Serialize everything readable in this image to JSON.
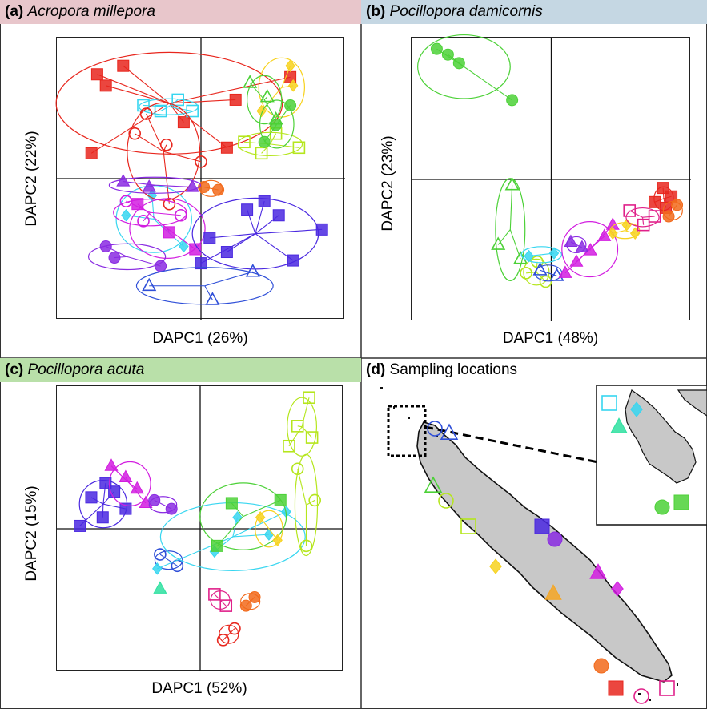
{
  "panels": {
    "a": {
      "label": "(a)",
      "species": "Acropora millepora",
      "bg": "#e8c6cb",
      "xlabel": "DAPC1 (26%)",
      "ylabel": "DAPC2 (22%)"
    },
    "b": {
      "label": "(b)",
      "species": "Pocillopora damicornis",
      "bg": "#c5d7e3",
      "xlabel": "DAPC1 (48%)",
      "ylabel": "DAPC2 (23%)"
    },
    "c": {
      "label": "(c)",
      "species": "Pocillopora acuta",
      "bg": "#b9e0a9",
      "xlabel": "DAPC1 (52%)",
      "ylabel": "DAPC2 (15%)"
    },
    "d": {
      "label": "(d)",
      "title": "Sampling locations"
    }
  },
  "colors": {
    "red": "#e8261d",
    "orange": "#f26a1b",
    "amber": "#f5a623",
    "yellow": "#f7d21d",
    "lime": "#b5e61d",
    "green": "#4cd137",
    "mint": "#2ee0a0",
    "cyan": "#37d6f0",
    "blue": "#2f4fd8",
    "indigo": "#4a28e0",
    "violet": "#8a2be2",
    "magenta": "#d21de0",
    "pink": "#e0218a",
    "land": "#c8c8c8"
  },
  "chart_data": [
    {
      "type": "scatter",
      "panel": "a",
      "xlabel": "DAPC1 (26%)",
      "ylabel": "DAPC2 (22%)",
      "xlim": [
        -5,
        5
      ],
      "ylim": [
        -5,
        5
      ],
      "series": [
        {
          "color": "red",
          "shape": "square",
          "fill": true,
          "points": [
            [
              -3.6,
              3.7
            ],
            [
              -3.3,
              3.3
            ],
            [
              -2.7,
              4.0
            ],
            [
              -3.8,
              0.9
            ],
            [
              -0.6,
              2.0
            ],
            [
              0.9,
              1.1
            ],
            [
              1.2,
              2.8
            ],
            [
              3.1,
              3.6
            ]
          ]
        },
        {
          "color": "cyan",
          "shape": "square",
          "fill": false,
          "points": [
            [
              -2.0,
              2.6
            ],
            [
              -1.4,
              2.4
            ],
            [
              -0.8,
              2.8
            ],
            [
              -0.3,
              2.4
            ]
          ]
        },
        {
          "color": "cyan",
          "shape": "diamond",
          "fill": true,
          "points": [
            [
              -2.6,
              -1.3
            ],
            [
              -0.6,
              -2.4
            ],
            [
              -1.7,
              -0.6
            ]
          ]
        },
        {
          "color": "yellow",
          "shape": "diamond",
          "fill": true,
          "points": [
            [
              3.1,
              4.0
            ],
            [
              3.2,
              3.3
            ],
            [
              2.1,
              2.4
            ]
          ]
        },
        {
          "color": "lime",
          "shape": "square",
          "fill": false,
          "points": [
            [
              1.5,
              1.3
            ],
            [
              2.6,
              1.6
            ],
            [
              2.1,
              0.9
            ],
            [
              3.4,
              1.1
            ]
          ]
        },
        {
          "color": "green",
          "shape": "circle",
          "fill": true,
          "points": [
            [
              3.1,
              2.6
            ],
            [
              2.6,
              1.9
            ],
            [
              2.2,
              1.3
            ]
          ]
        },
        {
          "color": "green",
          "shape": "triangle",
          "fill": false,
          "points": [
            [
              1.7,
              3.4
            ],
            [
              2.3,
              2.9
            ],
            [
              2.6,
              2.1
            ]
          ]
        },
        {
          "color": "red",
          "shape": "circle",
          "fill": false,
          "points": [
            [
              -1.9,
              2.3
            ],
            [
              -2.3,
              1.6
            ],
            [
              -1.2,
              1.2
            ],
            [
              0.0,
              0.6
            ],
            [
              -1.1,
              -0.9
            ]
          ]
        },
        {
          "color": "orange",
          "shape": "circle",
          "fill": true,
          "points": [
            [
              0.6,
              -0.4
            ],
            [
              0.1,
              -0.3
            ]
          ]
        },
        {
          "color": "violet",
          "shape": "triangle",
          "fill": true,
          "points": [
            [
              -2.7,
              -0.1
            ],
            [
              -1.8,
              -0.3
            ],
            [
              -0.3,
              -0.3
            ]
          ]
        },
        {
          "color": "magenta",
          "shape": "square",
          "fill": true,
          "points": [
            [
              -2.2,
              -0.9
            ],
            [
              -1.1,
              -1.9
            ],
            [
              -0.2,
              -2.5
            ]
          ]
        },
        {
          "color": "magenta",
          "shape": "circle",
          "fill": false,
          "points": [
            [
              -2.0,
              -1.5
            ],
            [
              -2.6,
              -0.8
            ],
            [
              -0.7,
              -1.3
            ]
          ]
        },
        {
          "color": "violet",
          "shape": "circle",
          "fill": true,
          "points": [
            [
              -3.0,
              -2.8
            ],
            [
              -3.3,
              -2.4
            ],
            [
              -1.4,
              -3.1
            ]
          ]
        },
        {
          "color": "indigo",
          "shape": "square",
          "fill": true,
          "points": [
            [
              0.3,
              -2.1
            ],
            [
              0.9,
              -2.6
            ],
            [
              1.6,
              -1.1
            ],
            [
              2.2,
              -0.8
            ],
            [
              2.7,
              -1.3
            ],
            [
              4.2,
              -1.8
            ],
            [
              3.2,
              -2.9
            ],
            [
              0.0,
              -3.0
            ]
          ]
        },
        {
          "color": "blue",
          "shape": "triangle",
          "fill": false,
          "points": [
            [
              -1.8,
              -3.8
            ],
            [
              1.8,
              -3.3
            ],
            [
              0.4,
              -4.3
            ]
          ]
        }
      ]
    },
    {
      "type": "scatter",
      "panel": "b",
      "xlabel": "DAPC1 (48%)",
      "ylabel": "DAPC2 (23%)",
      "xlim": [
        -5,
        5
      ],
      "ylim": [
        -5,
        5
      ],
      "series": [
        {
          "color": "green",
          "shape": "circle",
          "fill": true,
          "points": [
            [
              -4.1,
              4.6
            ],
            [
              -3.7,
              4.4
            ],
            [
              -3.3,
              4.1
            ],
            [
              -1.4,
              2.8
            ]
          ]
        },
        {
          "color": "green",
          "shape": "triangle",
          "fill": false,
          "points": [
            [
              -1.4,
              -0.2
            ],
            [
              -1.9,
              -2.3
            ],
            [
              -1.1,
              -2.8
            ]
          ]
        },
        {
          "color": "lime",
          "shape": "circle",
          "fill": false,
          "points": [
            [
              -0.5,
              -2.9
            ],
            [
              -0.9,
              -3.3
            ],
            [
              -0.2,
              -3.6
            ]
          ]
        },
        {
          "color": "cyan",
          "shape": "diamond",
          "fill": true,
          "points": [
            [
              -0.8,
              -2.7
            ],
            [
              0.1,
              -2.6
            ]
          ]
        },
        {
          "color": "blue",
          "shape": "triangle",
          "fill": false,
          "points": [
            [
              -0.4,
              -3.2
            ],
            [
              0.2,
              -3.4
            ]
          ]
        },
        {
          "color": "magenta",
          "shape": "triangle",
          "fill": true,
          "points": [
            [
              0.5,
              -3.3
            ],
            [
              0.9,
              -2.9
            ],
            [
              1.4,
              -2.5
            ],
            [
              1.9,
              -2.0
            ],
            [
              2.2,
              -1.6
            ]
          ]
        },
        {
          "color": "violet",
          "shape": "triangle",
          "fill": true,
          "points": [
            [
              0.7,
              -2.2
            ],
            [
              1.1,
              -2.4
            ]
          ]
        },
        {
          "color": "yellow",
          "shape": "diamond",
          "fill": true,
          "points": [
            [
              2.2,
              -1.9
            ],
            [
              2.7,
              -1.6
            ],
            [
              3.0,
              -1.9
            ]
          ]
        },
        {
          "color": "pink",
          "shape": "square",
          "fill": false,
          "points": [
            [
              2.8,
              -1.1
            ],
            [
              3.3,
              -1.6
            ],
            [
              3.7,
              -1.3
            ]
          ]
        },
        {
          "color": "red",
          "shape": "square",
          "fill": true,
          "points": [
            [
              4.0,
              -0.3
            ],
            [
              4.3,
              -0.6
            ],
            [
              4.1,
              -1.0
            ],
            [
              3.7,
              -0.8
            ]
          ]
        },
        {
          "color": "orange",
          "shape": "circle",
          "fill": true,
          "points": [
            [
              4.5,
              -0.9
            ],
            [
              4.2,
              -1.3
            ]
          ]
        }
      ]
    },
    {
      "type": "scatter",
      "panel": "c",
      "xlabel": "DAPC1 (52%)",
      "ylabel": "DAPC2 (15%)",
      "xlim": [
        -5,
        5
      ],
      "ylim": [
        -5,
        5
      ],
      "series": [
        {
          "color": "indigo",
          "shape": "square",
          "fill": true,
          "points": [
            [
              -4.2,
              0.1
            ],
            [
              -3.8,
              1.1
            ],
            [
              -3.4,
              0.4
            ],
            [
              -3.0,
              1.3
            ],
            [
              -2.6,
              0.7
            ],
            [
              -3.3,
              1.6
            ]
          ]
        },
        {
          "color": "magenta",
          "shape": "triangle",
          "fill": true,
          "points": [
            [
              -3.1,
              2.2
            ],
            [
              -2.6,
              1.8
            ],
            [
              -2.2,
              1.4
            ],
            [
              -1.9,
              0.9
            ]
          ]
        },
        {
          "color": "violet",
          "shape": "circle",
          "fill": true,
          "points": [
            [
              -1.0,
              0.7
            ],
            [
              -1.6,
              1.0
            ]
          ]
        },
        {
          "color": "blue",
          "shape": "circle",
          "fill": false,
          "points": [
            [
              -1.4,
              -0.9
            ],
            [
              -0.8,
              -1.3
            ]
          ]
        },
        {
          "color": "cyan",
          "shape": "diamond",
          "fill": true,
          "points": [
            [
              -1.5,
              -1.4
            ],
            [
              0.5,
              -0.8
            ],
            [
              1.3,
              0.4
            ],
            [
              2.4,
              -0.2
            ],
            [
              3.0,
              0.6
            ]
          ]
        },
        {
          "color": "mint",
          "shape": "triangle",
          "fill": true,
          "points": [
            [
              -1.4,
              -2.1
            ]
          ]
        },
        {
          "color": "green",
          "shape": "square",
          "fill": true,
          "points": [
            [
              1.1,
              0.9
            ],
            [
              2.8,
              1.0
            ],
            [
              0.6,
              -0.6
            ]
          ]
        },
        {
          "color": "lime",
          "shape": "square",
          "fill": false,
          "points": [
            [
              3.8,
              4.6
            ],
            [
              3.4,
              3.6
            ],
            [
              3.9,
              3.2
            ],
            [
              3.1,
              2.9
            ]
          ]
        },
        {
          "color": "lime",
          "shape": "circle",
          "fill": false,
          "points": [
            [
              3.4,
              2.1
            ],
            [
              4.0,
              1.0
            ],
            [
              3.7,
              -0.6
            ]
          ]
        },
        {
          "color": "yellow",
          "shape": "diamond",
          "fill": true,
          "points": [
            [
              2.1,
              0.4
            ],
            [
              2.7,
              -0.4
            ]
          ]
        },
        {
          "color": "pink",
          "shape": "square",
          "fill": false,
          "points": [
            [
              0.5,
              -2.3
            ],
            [
              0.9,
              -2.7
            ]
          ]
        },
        {
          "color": "orange",
          "shape": "circle",
          "fill": true,
          "points": [
            [
              1.9,
              -2.4
            ],
            [
              1.6,
              -2.7
            ]
          ]
        },
        {
          "color": "red",
          "shape": "circle",
          "fill": false,
          "points": [
            [
              1.2,
              -3.5
            ],
            [
              0.8,
              -3.9
            ]
          ]
        }
      ]
    },
    {
      "type": "map",
      "panel": "d",
      "title": "Sampling locations",
      "sites": [
        {
          "color": "blue",
          "shape": "circle",
          "fill": false
        },
        {
          "color": "blue",
          "shape": "triangle",
          "fill": false
        },
        {
          "color": "green",
          "shape": "triangle",
          "fill": false
        },
        {
          "color": "lime",
          "shape": "circle",
          "fill": false
        },
        {
          "color": "lime",
          "shape": "square",
          "fill": false
        },
        {
          "color": "yellow",
          "shape": "diamond",
          "fill": true
        },
        {
          "color": "indigo",
          "shape": "square",
          "fill": true
        },
        {
          "color": "violet",
          "shape": "circle",
          "fill": true
        },
        {
          "color": "amber",
          "shape": "triangle",
          "fill": true
        },
        {
          "color": "magenta",
          "shape": "triangle",
          "fill": true
        },
        {
          "color": "magenta",
          "shape": "diamond",
          "fill": true
        },
        {
          "color": "orange",
          "shape": "circle",
          "fill": true
        },
        {
          "color": "red",
          "shape": "square",
          "fill": true
        },
        {
          "color": "pink",
          "shape": "circle",
          "fill": false
        },
        {
          "color": "pink",
          "shape": "square",
          "fill": false
        }
      ],
      "inset_sites": [
        {
          "color": "cyan",
          "shape": "square",
          "fill": false
        },
        {
          "color": "cyan",
          "shape": "diamond",
          "fill": true
        },
        {
          "color": "mint",
          "shape": "triangle",
          "fill": true
        },
        {
          "color": "green",
          "shape": "circle",
          "fill": true
        },
        {
          "color": "green",
          "shape": "square",
          "fill": true
        }
      ]
    }
  ]
}
